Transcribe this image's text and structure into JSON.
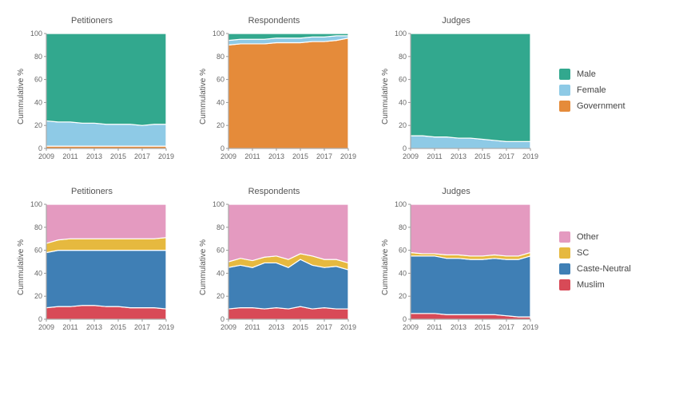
{
  "layout": {
    "rows": 2,
    "cols": 3
  },
  "x": {
    "min": 2009,
    "max": 2019,
    "ticks": [
      2009,
      2011,
      2013,
      2015,
      2017,
      2019
    ]
  },
  "y": {
    "min": 0,
    "max": 100,
    "ticks": [
      0,
      20,
      40,
      60,
      80,
      100
    ],
    "label": "Cummulative %"
  },
  "plot": {
    "width": 180,
    "height": 170,
    "background": "#ffffff",
    "grid_color": "#e8e8e8",
    "axis_color": "#999999",
    "stroke_between": "#ffffff",
    "stroke_width": 1.2,
    "title_fontsize": 11,
    "tick_fontsize": 9
  },
  "rows_meta": [
    {
      "legend_order": [
        "male",
        "female",
        "government"
      ],
      "colors": {
        "male": "#32a88e",
        "female": "#8ecae6",
        "government": "#e58b3a"
      },
      "labels": {
        "male": "Male",
        "female": "Female",
        "government": "Government"
      }
    },
    {
      "legend_order": [
        "other",
        "sc",
        "caste_neutral",
        "muslim"
      ],
      "colors": {
        "other": "#e49ac0",
        "sc": "#e6b93f",
        "caste_neutral": "#3f7fb5",
        "muslim": "#d84a57"
      },
      "labels": {
        "other": "Other",
        "sc": "SC",
        "caste_neutral": "Caste-Neutral",
        "muslim": "Muslim"
      }
    }
  ],
  "panels": [
    {
      "row": 0,
      "title": "Petitioners",
      "stack_order": [
        "government",
        "female",
        "male"
      ],
      "years": [
        2009,
        2010,
        2011,
        2012,
        2013,
        2014,
        2015,
        2016,
        2017,
        2018,
        2019
      ],
      "series": {
        "government": [
          2,
          2,
          2,
          2,
          2,
          2,
          2,
          2,
          2,
          2,
          2
        ],
        "female": [
          22,
          21,
          21,
          20,
          20,
          19,
          19,
          19,
          18,
          19,
          19
        ],
        "male": [
          76,
          77,
          77,
          78,
          78,
          79,
          79,
          79,
          80,
          79,
          79
        ]
      }
    },
    {
      "row": 0,
      "title": "Respondents",
      "stack_order": [
        "government",
        "female",
        "male"
      ],
      "years": [
        2009,
        2010,
        2011,
        2012,
        2013,
        2014,
        2015,
        2016,
        2017,
        2018,
        2019
      ],
      "series": {
        "government": [
          90,
          91,
          91,
          91,
          92,
          92,
          92,
          93,
          93,
          94,
          96
        ],
        "female": [
          4,
          4,
          4,
          4,
          4,
          4,
          4,
          4,
          4,
          4,
          2
        ],
        "male": [
          6,
          5,
          5,
          5,
          4,
          4,
          4,
          3,
          3,
          2,
          2
        ]
      }
    },
    {
      "row": 0,
      "title": "Judges",
      "stack_order": [
        "government",
        "female",
        "male"
      ],
      "years": [
        2009,
        2010,
        2011,
        2012,
        2013,
        2014,
        2015,
        2016,
        2017,
        2018,
        2019
      ],
      "series": {
        "government": [
          0,
          0,
          0,
          0,
          0,
          0,
          0,
          0,
          0,
          0,
          0
        ],
        "female": [
          11,
          11,
          10,
          10,
          9,
          9,
          8,
          7,
          6,
          6,
          6
        ],
        "male": [
          89,
          89,
          90,
          90,
          91,
          91,
          92,
          93,
          94,
          94,
          94
        ]
      }
    },
    {
      "row": 1,
      "title": "Petitioners",
      "stack_order": [
        "muslim",
        "caste_neutral",
        "sc",
        "other"
      ],
      "years": [
        2009,
        2010,
        2011,
        2012,
        2013,
        2014,
        2015,
        2016,
        2017,
        2018,
        2019
      ],
      "series": {
        "muslim": [
          10,
          11,
          11,
          12,
          12,
          11,
          11,
          10,
          10,
          10,
          9
        ],
        "caste_neutral": [
          48,
          49,
          49,
          48,
          48,
          49,
          49,
          50,
          50,
          50,
          51
        ],
        "sc": [
          8,
          9,
          10,
          10,
          10,
          10,
          10,
          10,
          10,
          10,
          11
        ],
        "other": [
          34,
          31,
          30,
          30,
          30,
          30,
          30,
          30,
          30,
          30,
          29
        ]
      }
    },
    {
      "row": 1,
      "title": "Respondents",
      "stack_order": [
        "muslim",
        "caste_neutral",
        "sc",
        "other"
      ],
      "years": [
        2009,
        2010,
        2011,
        2012,
        2013,
        2014,
        2015,
        2016,
        2017,
        2018,
        2019
      ],
      "series": {
        "muslim": [
          9,
          10,
          10,
          9,
          10,
          9,
          11,
          9,
          10,
          9,
          9
        ],
        "caste_neutral": [
          36,
          37,
          35,
          40,
          39,
          36,
          41,
          38,
          35,
          37,
          34
        ],
        "sc": [
          5,
          6,
          6,
          5,
          6,
          7,
          5,
          8,
          7,
          6,
          6
        ],
        "other": [
          50,
          47,
          49,
          46,
          45,
          48,
          43,
          45,
          48,
          48,
          51
        ]
      }
    },
    {
      "row": 1,
      "title": "Judges",
      "stack_order": [
        "muslim",
        "caste_neutral",
        "sc",
        "other"
      ],
      "years": [
        2009,
        2010,
        2011,
        2012,
        2013,
        2014,
        2015,
        2016,
        2017,
        2018,
        2019
      ],
      "series": {
        "muslim": [
          5,
          5,
          5,
          4,
          4,
          4,
          4,
          4,
          3,
          2,
          2
        ],
        "caste_neutral": [
          50,
          50,
          50,
          49,
          49,
          48,
          48,
          49,
          49,
          50,
          53
        ],
        "sc": [
          3,
          2,
          2,
          3,
          3,
          3,
          3,
          3,
          3,
          3,
          3
        ],
        "other": [
          42,
          43,
          43,
          44,
          44,
          45,
          45,
          44,
          45,
          45,
          42
        ]
      }
    }
  ]
}
